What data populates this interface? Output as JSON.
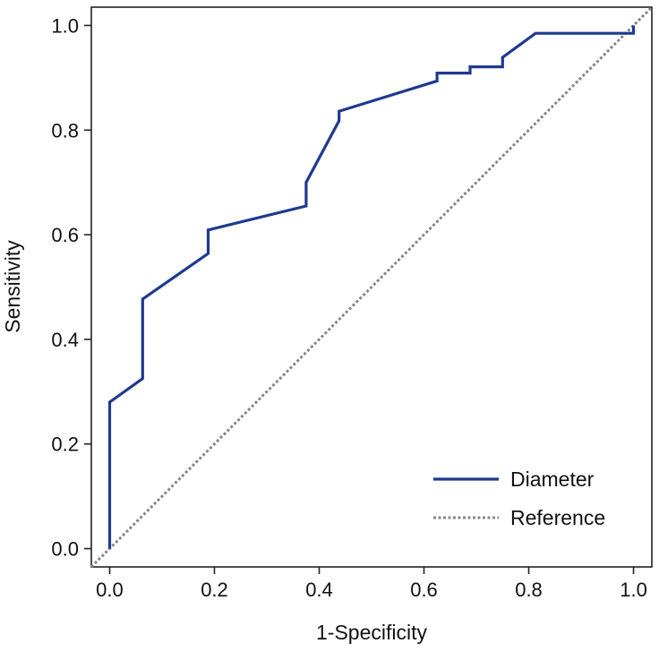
{
  "chart_data": {
    "type": "line",
    "title": "",
    "xlabel": "1-Specificity",
    "ylabel": "Sensitivity",
    "xlim": [
      -0.035,
      1.035
    ],
    "ylim": [
      -0.035,
      1.035
    ],
    "x_ticks": [
      "0.0",
      "0.2",
      "0.4",
      "0.6",
      "0.8",
      "1.0"
    ],
    "y_ticks": [
      "0.0",
      "0.2",
      "0.4",
      "0.6",
      "0.8",
      "1.0"
    ],
    "grid": false,
    "legend_position": "bottom-right",
    "series": [
      {
        "name": "Diameter",
        "color": "#1f3a8f",
        "style": "solid",
        "points": [
          [
            0.0,
            0.0
          ],
          [
            0.0,
            0.28
          ],
          [
            0.063,
            0.325
          ],
          [
            0.063,
            0.477
          ],
          [
            0.188,
            0.564
          ],
          [
            0.188,
            0.609
          ],
          [
            0.375,
            0.655
          ],
          [
            0.375,
            0.7
          ],
          [
            0.438,
            0.818
          ],
          [
            0.438,
            0.836
          ],
          [
            0.625,
            0.894
          ],
          [
            0.625,
            0.909
          ],
          [
            0.688,
            0.909
          ],
          [
            0.688,
            0.921
          ],
          [
            0.75,
            0.921
          ],
          [
            0.75,
            0.939
          ],
          [
            0.813,
            0.985
          ],
          [
            1.0,
            0.985
          ],
          [
            1.0,
            1.0
          ]
        ]
      },
      {
        "name": "Reference",
        "color": "#888888",
        "style": "dotted",
        "points": [
          [
            -0.035,
            -0.035
          ],
          [
            1.035,
            1.035
          ]
        ]
      }
    ]
  }
}
